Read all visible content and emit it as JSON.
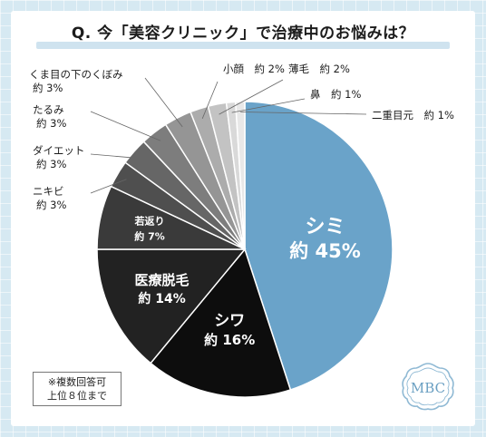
{
  "header": {
    "title": "Q. 今「美容クリニック」で治療中のお悩みは？"
  },
  "note": {
    "line1": "※複数回答可",
    "line2": "上位８位まで"
  },
  "logo": {
    "text": "MBC"
  },
  "colors": {
    "background": "#d6e9f2",
    "title_underline": "#cfe3ef",
    "leader_line": "#666666",
    "slice_colors": [
      "#6aa3c9",
      "#0d0d0d",
      "#222222",
      "#3a3a3a",
      "#4f4f4f",
      "#666666",
      "#7d7d7d",
      "#959595",
      "#acacac",
      "#c3c3c3",
      "#d9d9d9",
      "#e8e8e8"
    ]
  },
  "chart_data": {
    "type": "pie",
    "title": "Q. 今「美容クリニック」で治療中のお悩みは？",
    "unit": "%",
    "slices": [
      {
        "label": "シミ",
        "value": 45,
        "value_label": "約 45%"
      },
      {
        "label": "シワ",
        "value": 16,
        "value_label": "約 16%"
      },
      {
        "label": "医療脱毛",
        "value": 14,
        "value_label": "約 14%"
      },
      {
        "label": "若返り",
        "value": 7,
        "value_label": "約 7%"
      },
      {
        "label": "ニキビ",
        "value": 3,
        "value_label": "約 3%"
      },
      {
        "label": "ダイエット",
        "value": 3,
        "value_label": "約 3%"
      },
      {
        "label": "たるみ",
        "value": 3,
        "value_label": "約 3%"
      },
      {
        "label": "くま目の下のくぼみ",
        "value": 3,
        "value_label": "約 3%"
      },
      {
        "label": "小顔",
        "value": 2,
        "value_label": "約 2%"
      },
      {
        "label": "薄毛",
        "value": 2,
        "value_label": "約 2%"
      },
      {
        "label": "鼻",
        "value": 1,
        "value_label": "約 1%"
      },
      {
        "label": "二重目元",
        "value": 1,
        "value_label": "約 1%"
      }
    ]
  }
}
